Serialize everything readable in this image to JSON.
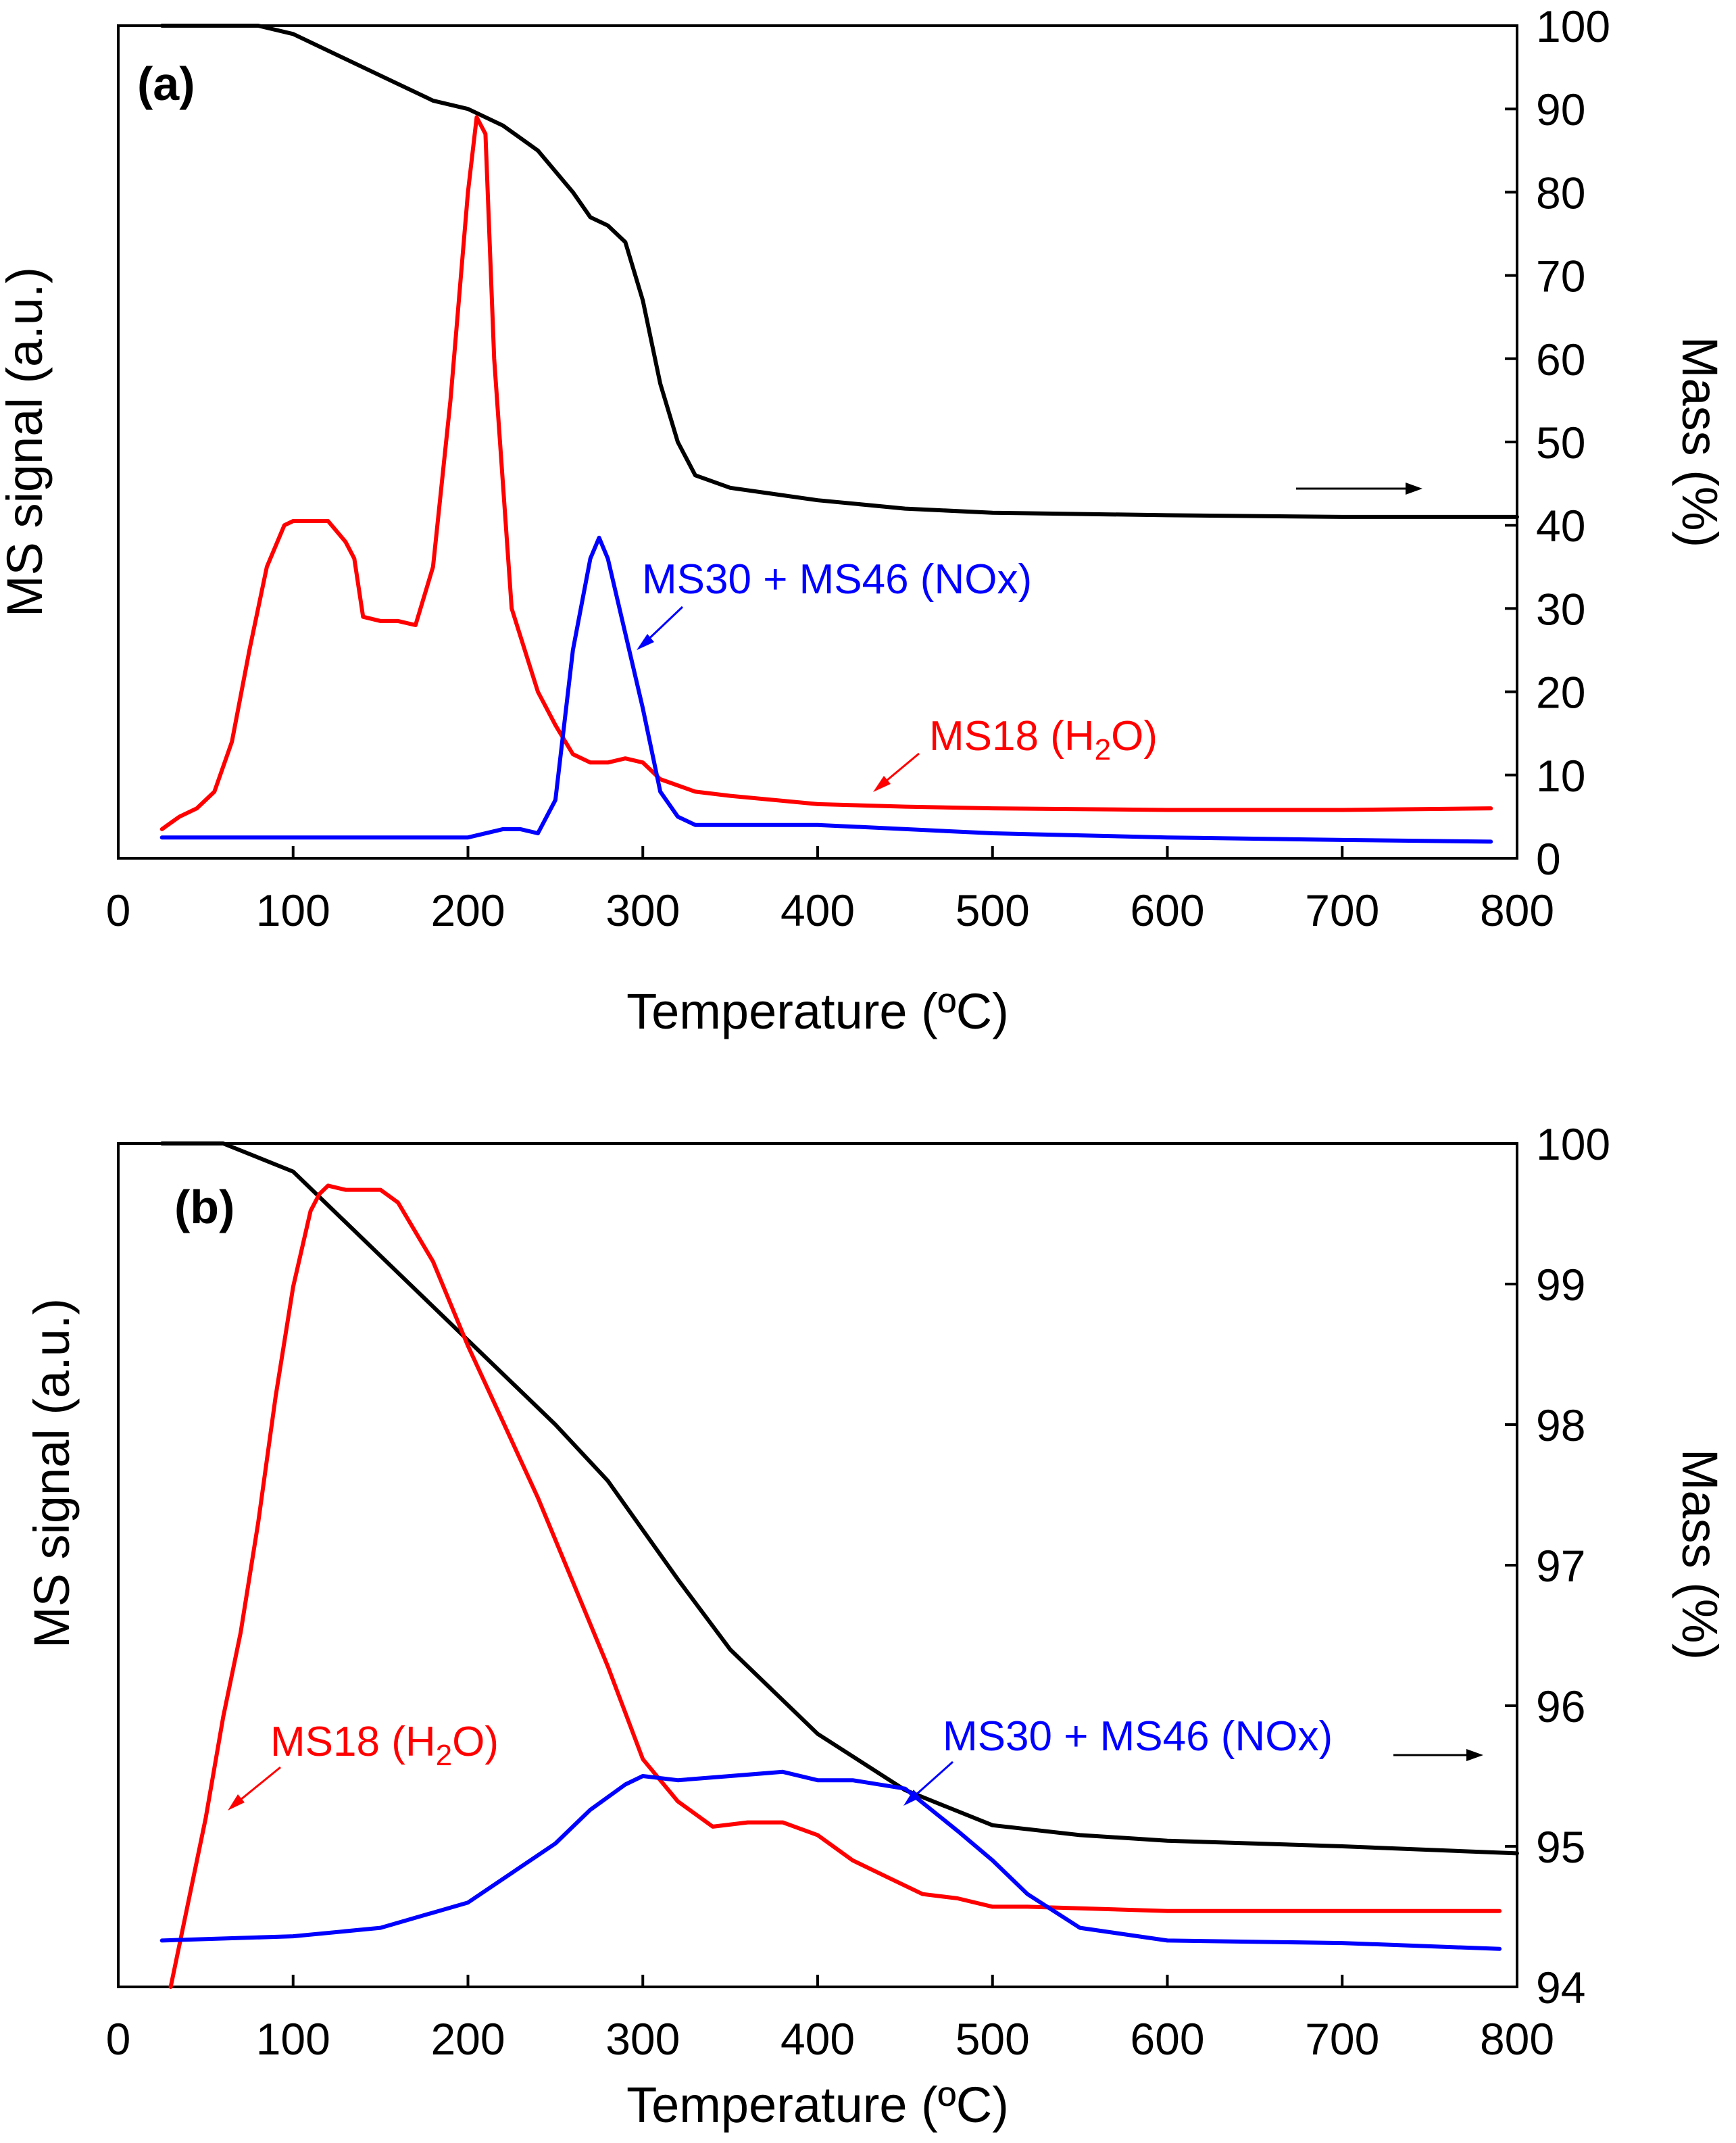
{
  "chart_data": [
    {
      "type": "line",
      "panel_label": "(a)",
      "xlabel": "Temperature (ºC)",
      "ylabel_left": "MS signal (a.u.)",
      "ylabel_right": "Mass (%)",
      "xlim": [
        0,
        800
      ],
      "x_ticks": [
        "0",
        "100",
        "200",
        "300",
        "400",
        "500",
        "600",
        "700",
        "800"
      ],
      "ylim_right": [
        0,
        100
      ],
      "y_right_ticks": [
        "0",
        "10",
        "20",
        "30",
        "40",
        "50",
        "60",
        "70",
        "80",
        "90",
        "100"
      ],
      "ylim_left": [
        0,
        100
      ],
      "series": [
        {
          "name": "Mass",
          "color": "#000000",
          "axis": "right",
          "x": [
            25,
            50,
            80,
            100,
            130,
            150,
            180,
            200,
            220,
            240,
            260,
            270,
            280,
            290,
            300,
            310,
            320,
            330,
            350,
            400,
            450,
            500,
            600,
            700,
            800
          ],
          "y": [
            100,
            100,
            100,
            99,
            96,
            94,
            91,
            90,
            88,
            85,
            80,
            77,
            76,
            74,
            67,
            57,
            50,
            46,
            44.5,
            43,
            42,
            41.5,
            41.2,
            41,
            41
          ]
        },
        {
          "name": "MS18 (H2O)",
          "color": "#ff0000",
          "axis": "left",
          "x": [
            25,
            35,
            45,
            55,
            65,
            75,
            85,
            95,
            100,
            110,
            120,
            130,
            135,
            140,
            150,
            160,
            170,
            180,
            190,
            200,
            205,
            210,
            215,
            225,
            240,
            250,
            260,
            270,
            280,
            290,
            300,
            310,
            330,
            350,
            400,
            450,
            500,
            600,
            700,
            785
          ],
          "y": [
            3.5,
            5,
            6,
            8,
            14,
            25,
            35,
            40,
            40.5,
            40.5,
            40.5,
            38,
            36,
            29,
            28.5,
            28.5,
            28,
            35,
            55,
            80,
            89,
            87,
            60,
            30,
            20,
            16,
            12.5,
            11.5,
            11.5,
            12,
            11.5,
            9.5,
            8,
            7.5,
            6.5,
            6.2,
            6.0,
            5.8,
            5.8,
            6.0
          ]
        },
        {
          "name": "MS30 + MS46 (NOx)",
          "color": "#0000ff",
          "axis": "left",
          "x": [
            25,
            100,
            200,
            220,
            230,
            240,
            250,
            260,
            270,
            275,
            280,
            290,
            300,
            310,
            320,
            330,
            400,
            500,
            600,
            700,
            785
          ],
          "y": [
            2.5,
            2.5,
            2.5,
            3.5,
            3.5,
            3,
            7,
            25,
            36,
            38.5,
            36,
            27,
            18,
            8,
            5,
            4,
            4,
            3,
            2.5,
            2.2,
            2.0
          ]
        }
      ],
      "annotations": [
        {
          "text": "MS30 + MS46 (NOx)",
          "color": "#0000ff",
          "x": 450,
          "y": 33.5
        },
        {
          "text_main": "MS18 (H",
          "text_sub": "2",
          "text_end": "O)",
          "color": "#ff0000",
          "x": 465,
          "y": 13.5
        }
      ]
    },
    {
      "type": "line",
      "panel_label": "(b)",
      "xlabel": "Temperature (ºC)",
      "ylabel_left": "MS signal (a.u.)",
      "ylabel_right": "Mass (%)",
      "xlim": [
        0,
        800
      ],
      "x_ticks": [
        "0",
        "100",
        "200",
        "300",
        "400",
        "500",
        "600",
        "700",
        "800"
      ],
      "ylim_right": [
        94,
        100
      ],
      "y_right_ticks": [
        "94",
        "95",
        "96",
        "97",
        "98",
        "99",
        "100"
      ],
      "ylim_left": [
        0,
        100
      ],
      "series": [
        {
          "name": "Mass",
          "color": "#000000",
          "axis": "right",
          "x": [
            25,
            60,
            100,
            150,
            200,
            250,
            280,
            320,
            350,
            400,
            450,
            500,
            550,
            600,
            700,
            800
          ],
          "y": [
            100,
            100,
            99.8,
            99.2,
            98.6,
            98.0,
            97.6,
            96.9,
            96.4,
            95.8,
            95.4,
            95.15,
            95.08,
            95.04,
            95.0,
            94.95
          ]
        },
        {
          "name": "MS18 (H2O)",
          "color": "#ff0000",
          "axis": "left",
          "x": [
            30,
            40,
            50,
            60,
            70,
            80,
            90,
            100,
            110,
            115,
            120,
            130,
            150,
            160,
            180,
            200,
            220,
            240,
            260,
            280,
            300,
            320,
            340,
            360,
            380,
            400,
            420,
            440,
            460,
            480,
            500,
            520,
            600,
            700,
            790
          ],
          "y": [
            0,
            10,
            20,
            32,
            42,
            55,
            70,
            83,
            92,
            94,
            95,
            94.5,
            94.5,
            93,
            86,
            76,
            67,
            58,
            48,
            38,
            27,
            22,
            19,
            19.5,
            19.5,
            18,
            15,
            13,
            11,
            10.5,
            9.5,
            9.5,
            9,
            9,
            9
          ]
        },
        {
          "name": "MS30 + MS46 (NOx)",
          "color": "#0000ff",
          "axis": "left",
          "x": [
            25,
            100,
            150,
            200,
            250,
            270,
            290,
            300,
            320,
            350,
            380,
            400,
            420,
            450,
            480,
            500,
            520,
            550,
            600,
            700,
            790
          ],
          "y": [
            5.5,
            6,
            7,
            10,
            17,
            21,
            24,
            25,
            24.5,
            25,
            25.5,
            24.5,
            24.5,
            23.5,
            18.5,
            15,
            11,
            7,
            5.5,
            5.2,
            4.5
          ]
        }
      ],
      "annotations": [
        {
          "text_main": "MS18 (H",
          "text_sub": "2",
          "text_end": "O)",
          "color": "#ff0000",
          "x": 60,
          "y": 38
        },
        {
          "text": "MS30 + MS46 (NOx)",
          "color": "#0000ff",
          "x": 460,
          "y": 38
        }
      ]
    }
  ]
}
